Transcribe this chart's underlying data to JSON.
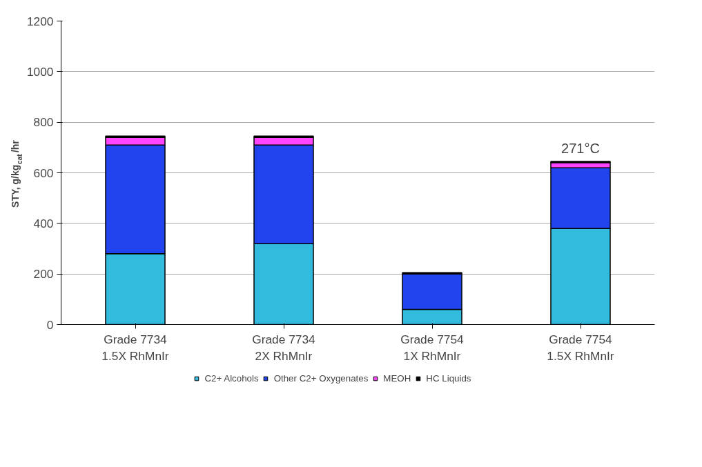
{
  "chart_data": {
    "type": "bar",
    "stacked": true,
    "ylabel": "STY, g/kg$_{cat}$/hr",
    "categories": [
      "Grade 7734\n1.5X RhMnIr",
      "Grade 7734\n2X RhMnIr",
      "Grade 7754\n1X RhMnIr",
      "Grade 7754\n1.5X RhMnIr"
    ],
    "series": [
      {
        "name": "C2+ Alcohols",
        "color": "#33bbdd",
        "values": [
          280,
          320,
          60,
          380
        ]
      },
      {
        "name": "Other C2+ Oxygenates",
        "color": "#2244ee",
        "values": [
          430,
          390,
          140,
          240
        ]
      },
      {
        "name": "MEOH",
        "color": "#ff44ff",
        "values": [
          30,
          30,
          0,
          20
        ]
      },
      {
        "name": "HC Liquids",
        "color": "#000000",
        "values": [
          5,
          5,
          5,
          5
        ]
      }
    ],
    "ylim": [
      0,
      1200
    ],
    "yticks": [
      0,
      200,
      400,
      600,
      800,
      1000,
      1200
    ],
    "grid": "y",
    "legend": "bottom",
    "annotations": [
      "271°C"
    ]
  }
}
